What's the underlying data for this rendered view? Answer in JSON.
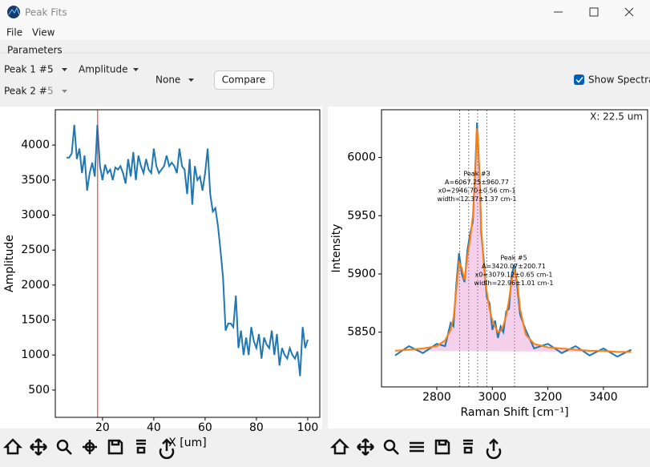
{
  "window": {
    "title": "Peak Fits"
  },
  "menu": [
    "File",
    "View"
  ],
  "parameters": {
    "group": "Parameters",
    "peak1_label": "Peak 1 #",
    "peak1_value": "5",
    "quantity": "Amplitude",
    "peak2_label": "Peak 2 #",
    "peak2_value": "5",
    "compare_mode": "None",
    "compare_button": "Compare",
    "show_spectra": "Show Spectra"
  },
  "chart_data": [
    {
      "type": "line",
      "xlabel": "X [um]",
      "ylabel": "Amplitude",
      "color": "#1f77b4",
      "cursor_color": "#d62728",
      "cursor_x": 18.1,
      "xlim": [
        1.6,
        104.7
      ],
      "ylim": [
        110,
        4505
      ],
      "xticks": [
        20,
        40,
        60,
        80,
        100
      ],
      "yticks": [
        500,
        1000,
        1500,
        2000,
        2500,
        3000,
        3500,
        4000
      ],
      "x": [
        6,
        7,
        8,
        9,
        10,
        11,
        12,
        13,
        14,
        15,
        16,
        17,
        18,
        19,
        20,
        21,
        22,
        23,
        24,
        25,
        26,
        27,
        28,
        29,
        30,
        31,
        32,
        33,
        34,
        35,
        36,
        37,
        38,
        39,
        40,
        41,
        42,
        43,
        44,
        45,
        46,
        47,
        48,
        49,
        50,
        51,
        52,
        53,
        54,
        55,
        56,
        57,
        58,
        59,
        60,
        61,
        62,
        63,
        64,
        65,
        66,
        67,
        68,
        69,
        70,
        71,
        72,
        73,
        74,
        75,
        76,
        77,
        78,
        79,
        80,
        81,
        82,
        83,
        84,
        85,
        86,
        87,
        88,
        89,
        90,
        91,
        92,
        93,
        94,
        95,
        96,
        97,
        98,
        99,
        100
      ],
      "values": [
        3820,
        3820,
        3880,
        4290,
        3800,
        3950,
        3600,
        3850,
        3350,
        3600,
        3750,
        3550,
        4290,
        3700,
        3500,
        3720,
        3600,
        3650,
        3500,
        3680,
        3650,
        3700,
        3600,
        3450,
        3800,
        3550,
        3900,
        3500,
        3850,
        3700,
        3600,
        3800,
        3650,
        3600,
        3950,
        3700,
        3600,
        3650,
        3700,
        3850,
        3700,
        3750,
        3700,
        3600,
        3950,
        3700,
        3650,
        3300,
        3800,
        3150,
        3700,
        3500,
        3550,
        3350,
        3600,
        3950,
        3300,
        3050,
        3100,
        2850,
        2500,
        2100,
        1350,
        1450,
        1450,
        1400,
        1850,
        1100,
        1350,
        1000,
        1250,
        1000,
        1400,
        1200,
        1100,
        1300,
        950,
        1250,
        1150,
        1100,
        1350,
        1000,
        1300,
        850,
        1100,
        1000,
        950,
        1100,
        1000,
        950,
        1050,
        700,
        1400,
        1100,
        1220
      ]
    },
    {
      "type": "spectrum",
      "xlabel": "Raman Shift [cm⁻¹]",
      "ylabel": "Intensity",
      "position_text": "X:  22.5 um",
      "xlim": [
        2601,
        3559
      ],
      "ylim": [
        5803,
        6041
      ],
      "xticks": [
        2800,
        3000,
        3200,
        3400
      ],
      "yticks": [
        5850,
        5900,
        5950,
        6000
      ],
      "peak_lines": [
        2882,
        2915,
        2947,
        2980,
        3080
      ],
      "area_color": "#e377c2",
      "x": [
        2650,
        2700,
        2750,
        2800,
        2830,
        2850,
        2860,
        2870,
        2880,
        2890,
        2900,
        2910,
        2920,
        2930,
        2940,
        2945,
        2950,
        2955,
        2960,
        2970,
        2980,
        2990,
        3000,
        3010,
        3020,
        3030,
        3040,
        3050,
        3060,
        3070,
        3080,
        3090,
        3100,
        3120,
        3150,
        3200,
        3250,
        3300,
        3350,
        3400,
        3450,
        3500
      ],
      "series": [
        {
          "color": "#1f77b4",
          "values": [
            5830,
            5838,
            5832,
            5840,
            5838,
            5858,
            5855,
            5890,
            5918,
            5900,
            5893,
            5920,
            5935,
            5945,
            6000,
            6030,
            6005,
            5980,
            5935,
            5910,
            5880,
            5875,
            5852,
            5860,
            5845,
            5855,
            5850,
            5868,
            5870,
            5900,
            5908,
            5888,
            5865,
            5852,
            5836,
            5840,
            5832,
            5838,
            5830,
            5836,
            5829,
            5835
          ]
        },
        {
          "color": "#ff7f0e",
          "values": [
            5834,
            5835,
            5836,
            5838,
            5843,
            5852,
            5862,
            5885,
            5910,
            5905,
            5895,
            5915,
            5930,
            5950,
            5995,
            6025,
            6010,
            5975,
            5940,
            5905,
            5885,
            5870,
            5860,
            5855,
            5850,
            5851,
            5856,
            5864,
            5878,
            5895,
            5903,
            5893,
            5870,
            5848,
            5840,
            5837,
            5836,
            5835,
            5834,
            5834,
            5833,
            5833
          ]
        }
      ],
      "annotations": [
        [
          "Peak #3",
          "A=6067.25±960.77",
          "x0=2946.70±0.56 cm-1",
          "width=12.37±1.37 cm-1"
        ],
        [
          "Peak #5",
          "A=3420.07±200.71",
          "x0=3079.12±0.65 cm-1",
          "width=22.96±1.01 cm-1"
        ]
      ]
    }
  ]
}
